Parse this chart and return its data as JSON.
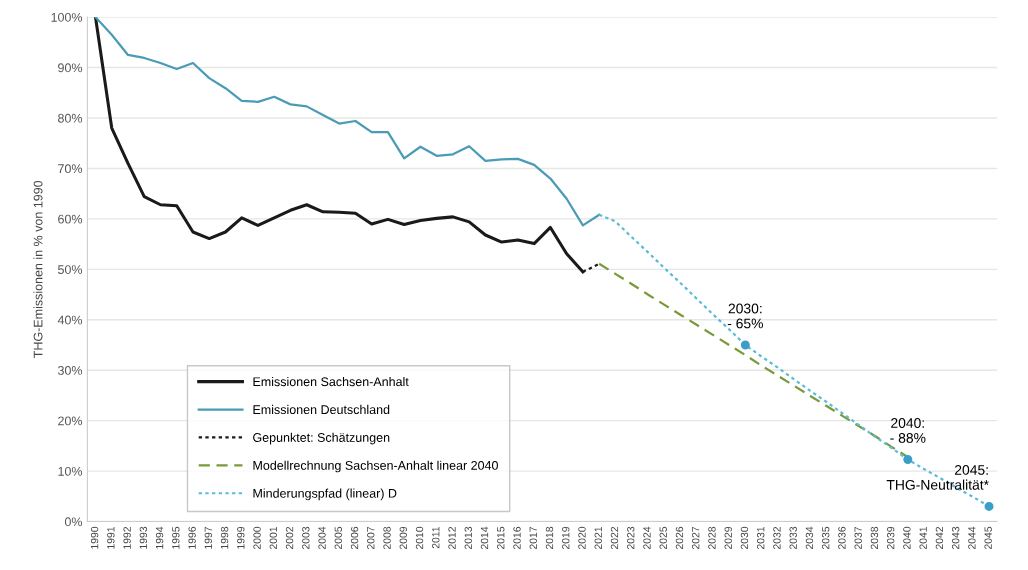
{
  "chart_data": {
    "type": "line",
    "ylabel": "THG-Emissionen in % von 1990",
    "categories": [
      "1990",
      "1991",
      "1992",
      "1993",
      "1994",
      "1995",
      "1996",
      "1997",
      "1998",
      "1999",
      "2000",
      "2001",
      "2002",
      "2003",
      "2004",
      "2005",
      "2006",
      "2007",
      "2008",
      "2009",
      "2010",
      "2011",
      "2012",
      "2013",
      "2014",
      "2015",
      "2016",
      "2017",
      "2018",
      "2019",
      "2020",
      "2021",
      "2022",
      "2023",
      "2024",
      "2025",
      "2026",
      "2027",
      "2028",
      "2029",
      "2030",
      "2031",
      "2032",
      "2033",
      "2034",
      "2035",
      "2036",
      "2037",
      "2038",
      "2039",
      "2040",
      "2041",
      "2042",
      "2043",
      "2044",
      "2045"
    ],
    "ylim": [
      0,
      100
    ],
    "yticks": [
      {
        "value": 0,
        "label": "0%"
      },
      {
        "value": 10,
        "label": "10%"
      },
      {
        "value": 20,
        "label": "20%"
      },
      {
        "value": 30,
        "label": "30%"
      },
      {
        "value": 40,
        "label": "40%"
      },
      {
        "value": 50,
        "label": "50%"
      },
      {
        "value": 60,
        "label": "60%"
      },
      {
        "value": 70,
        "label": "70%"
      },
      {
        "value": 80,
        "label": "80%"
      },
      {
        "value": 90,
        "label": "90%"
      },
      {
        "value": 100,
        "label": "100%"
      }
    ],
    "grid": "y",
    "legend": "bottom left",
    "series": [
      {
        "name": "Emissionen Sachsen-Anhalt",
        "color": "#1a1a1a",
        "line_style": "solid",
        "values": [
          100,
          78,
          71,
          64.4,
          62.8,
          62.6,
          57.4,
          56.1,
          57.4,
          60.2,
          58.7,
          60.2,
          61.7,
          62.8,
          61.4,
          61.3,
          61.1,
          59.0,
          59.9,
          58.9,
          59.7,
          60.1,
          60.4,
          59.4,
          56.8,
          55.4,
          55.8,
          55.1,
          58.3,
          53.1,
          49.5,
          null,
          null,
          null,
          null,
          null,
          null,
          null,
          null,
          null,
          null,
          null,
          null,
          null,
          null,
          null,
          null,
          null,
          null,
          null,
          null,
          null,
          null,
          null,
          null,
          null
        ]
      },
      {
        "name": "Emissionen Deutschland",
        "color": "#4a9bb5",
        "line_style": "solid",
        "values": [
          100,
          96.5,
          92.5,
          91.9,
          90.9,
          89.7,
          90.9,
          87.9,
          85.9,
          83.4,
          83.2,
          84.2,
          82.7,
          82.3,
          80.6,
          78.9,
          79.4,
          77.2,
          77.2,
          72.0,
          74.3,
          72.5,
          72.8,
          74.4,
          71.5,
          71.8,
          71.9,
          70.7,
          68,
          64,
          58.7,
          60.8,
          null,
          null,
          null,
          null,
          null,
          null,
          null,
          null,
          null,
          null,
          null,
          null,
          null,
          null,
          null,
          null,
          null,
          null,
          null,
          null,
          null,
          null,
          null,
          null
        ]
      },
      {
        "name": "Gepunktet: Schätzungen",
        "color": "#1a1a1a",
        "line_style": "dotted",
        "values": [
          null,
          null,
          null,
          null,
          null,
          null,
          null,
          null,
          null,
          null,
          null,
          null,
          null,
          null,
          null,
          null,
          null,
          null,
          null,
          null,
          null,
          null,
          null,
          null,
          null,
          null,
          null,
          null,
          null,
          null,
          49.5,
          51.1,
          null,
          null,
          null,
          null,
          null,
          null,
          null,
          null,
          null,
          null,
          null,
          null,
          null,
          null,
          null,
          null,
          null,
          null,
          null,
          null,
          null,
          null,
          null,
          null
        ]
      },
      {
        "name": "Modellrechnung Sachsen-Anhalt linear 2040",
        "color": "#7a9a3a",
        "line_style": "dashed",
        "values": [
          null,
          null,
          null,
          null,
          null,
          null,
          null,
          null,
          null,
          null,
          null,
          null,
          null,
          null,
          null,
          null,
          null,
          null,
          null,
          null,
          null,
          null,
          null,
          null,
          null,
          null,
          null,
          null,
          null,
          null,
          null,
          51.1,
          49.1,
          47.1,
          45.0,
          43.0,
          41.0,
          39.0,
          37.0,
          35.0,
          33.0,
          30.9,
          28.9,
          26.9,
          24.9,
          22.9,
          20.9,
          18.9,
          16.9,
          14.8,
          12.8,
          null,
          null,
          null,
          null,
          null
        ]
      },
      {
        "name": "Minderungspfad (linear) D",
        "color": "#5bbcd6",
        "line_style": "dotted",
        "values": [
          null,
          null,
          null,
          null,
          null,
          null,
          null,
          null,
          null,
          null,
          null,
          null,
          null,
          null,
          null,
          null,
          null,
          null,
          null,
          null,
          null,
          null,
          null,
          null,
          null,
          null,
          null,
          null,
          null,
          null,
          null,
          60.8,
          59.5,
          56.4,
          53.4,
          50.3,
          47.3,
          44.2,
          41.1,
          38.1,
          35,
          32.7,
          30.5,
          28.2,
          25.9,
          23.7,
          21.4,
          19.1,
          16.8,
          14.6,
          12.3,
          10.4,
          8.6,
          6.7,
          4.9,
          3
        ]
      },
      {
        "type": "scatter",
        "color": "#3a9fc8",
        "marker": "circle",
        "values": [
          null,
          null,
          null,
          null,
          null,
          null,
          null,
          null,
          null,
          null,
          null,
          null,
          null,
          null,
          null,
          null,
          null,
          null,
          null,
          null,
          null,
          null,
          null,
          null,
          null,
          null,
          null,
          null,
          null,
          null,
          null,
          null,
          null,
          null,
          null,
          null,
          null,
          null,
          null,
          null,
          35,
          null,
          null,
          null,
          null,
          null,
          null,
          null,
          null,
          null,
          12.3,
          null,
          null,
          null,
          null,
          3
        ]
      }
    ],
    "annotations": [
      {
        "text": "2030:\n- 65%",
        "x": "2030",
        "y": 35
      },
      {
        "text": "2040:\n- 88%",
        "x": "2040",
        "y": 12.3
      },
      {
        "text": "2045:\nTHG-Neutralität*",
        "x": "2045",
        "y": 3
      }
    ]
  }
}
